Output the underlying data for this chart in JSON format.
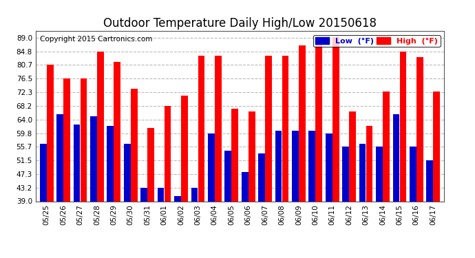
{
  "title": "Outdoor Temperature Daily High/Low 20150618",
  "copyright": "Copyright 2015 Cartronics.com",
  "dates": [
    "05/25",
    "05/26",
    "05/27",
    "05/28",
    "05/29",
    "05/30",
    "05/31",
    "06/01",
    "06/02",
    "06/03",
    "06/04",
    "06/05",
    "06/06",
    "06/07",
    "06/08",
    "06/09",
    "06/10",
    "06/11",
    "06/12",
    "06/13",
    "06/14",
    "06/15",
    "06/16",
    "06/17"
  ],
  "highs": [
    80.7,
    76.5,
    76.5,
    84.8,
    81.5,
    73.4,
    61.3,
    68.2,
    71.2,
    83.5,
    83.5,
    67.2,
    66.5,
    83.5,
    83.5,
    86.5,
    89.0,
    89.2,
    66.5,
    62.1,
    72.5,
    84.8,
    83.0,
    72.5
  ],
  "lows": [
    56.5,
    65.5,
    62.5,
    65.0,
    62.0,
    56.5,
    43.2,
    43.2,
    40.5,
    43.2,
    59.8,
    54.5,
    48.0,
    53.5,
    60.5,
    60.5,
    60.5,
    59.8,
    55.7,
    56.5,
    55.7,
    65.5,
    55.7,
    51.5
  ],
  "high_color": "#ff0000",
  "low_color": "#0000cc",
  "bg_color": "#ffffff",
  "grid_color": "#bbbbbb",
  "ymin": 39.0,
  "ymax": 91.0,
  "yticks": [
    39.0,
    43.2,
    47.3,
    51.5,
    55.7,
    59.8,
    64.0,
    68.2,
    72.3,
    76.5,
    80.7,
    84.8,
    89.0
  ],
  "title_fontsize": 12,
  "copyright_fontsize": 7.5,
  "legend_high_label": "High  (°F)",
  "legend_low_label": "Low  (°F)"
}
